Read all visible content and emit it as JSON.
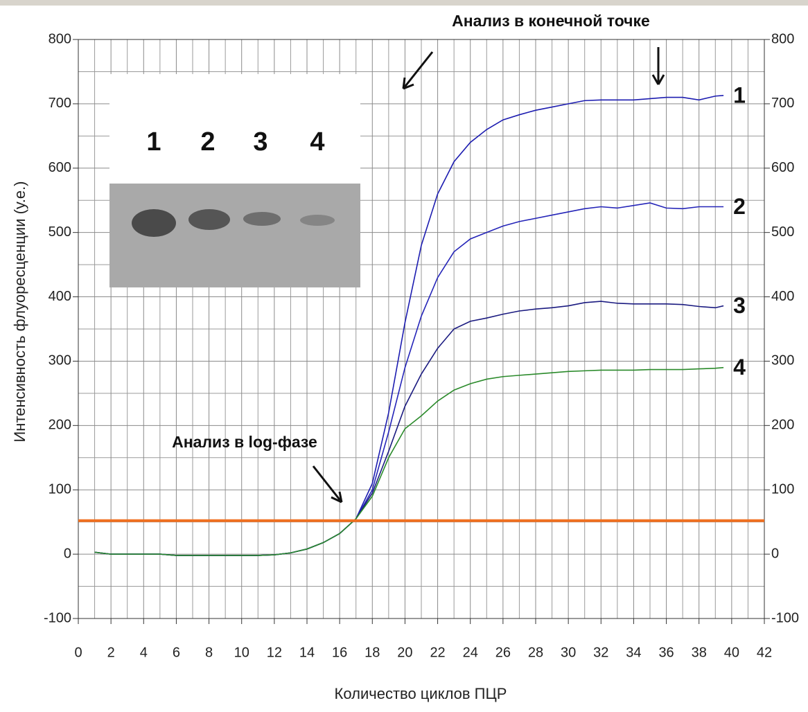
{
  "chart_data": {
    "type": "line",
    "annotations": {
      "endpoint": "Анализ в конечной точке",
      "logphase": "Анализ в log-фазе"
    },
    "xlabel": "Количество циклов ПЦР",
    "ylabel": "Интенсивность флуоресценции (у.е.)",
    "inset_lanes": [
      "1",
      "2",
      "3",
      "4"
    ],
    "x": [
      1,
      2,
      3,
      4,
      5,
      6,
      7,
      8,
      9,
      10,
      11,
      12,
      13,
      14,
      15,
      16,
      17,
      18,
      19,
      20,
      21,
      22,
      23,
      24,
      25,
      26,
      27,
      28,
      29,
      30,
      31,
      32,
      33,
      34,
      35,
      36,
      37,
      38,
      39,
      39.5
    ],
    "series": [
      {
        "name": "1",
        "color": "#1c1cb0",
        "values": [
          3,
          0,
          0,
          0,
          0,
          -2,
          -2,
          -2,
          -2,
          -2,
          -2,
          -1,
          2,
          8,
          18,
          32,
          55,
          110,
          220,
          360,
          480,
          560,
          610,
          640,
          660,
          675,
          683,
          690,
          695,
          700,
          705,
          706,
          706,
          706,
          708,
          710,
          710,
          706,
          712,
          713
        ]
      },
      {
        "name": "2",
        "color": "#2424b8",
        "values": [
          3,
          0,
          0,
          0,
          0,
          -2,
          -2,
          -2,
          -2,
          -2,
          -2,
          -1,
          2,
          8,
          18,
          32,
          55,
          100,
          190,
          290,
          370,
          430,
          470,
          490,
          500,
          510,
          517,
          522,
          527,
          532,
          537,
          540,
          538,
          542,
          546,
          538,
          537,
          540,
          540,
          540
        ]
      },
      {
        "name": "3",
        "color": "#1a1a80",
        "values": [
          3,
          0,
          0,
          0,
          0,
          -2,
          -2,
          -2,
          -2,
          -2,
          -2,
          -1,
          2,
          8,
          18,
          32,
          55,
          95,
          160,
          230,
          280,
          320,
          350,
          362,
          367,
          373,
          378,
          381,
          383,
          386,
          391,
          393,
          390,
          389,
          389,
          389,
          388,
          385,
          383,
          386
        ]
      },
      {
        "name": "4",
        "color": "#2a8a2a",
        "values": [
          3,
          0,
          0,
          0,
          0,
          -2,
          -2,
          -2,
          -2,
          -2,
          -2,
          -1,
          2,
          8,
          18,
          32,
          55,
          90,
          150,
          195,
          215,
          238,
          255,
          265,
          272,
          276,
          278,
          280,
          282,
          284,
          285,
          286,
          286,
          286,
          287,
          287,
          287,
          288,
          289,
          290
        ]
      }
    ],
    "threshold": 52,
    "threshold_color": "#f07020",
    "xlim": [
      0,
      42
    ],
    "xticks": [
      0,
      2,
      4,
      6,
      8,
      10,
      12,
      14,
      16,
      18,
      20,
      22,
      24,
      26,
      28,
      30,
      32,
      34,
      36,
      38,
      40,
      42
    ],
    "ylim": [
      -100,
      800
    ],
    "yticks": [
      -100,
      0,
      100,
      200,
      300,
      400,
      500,
      600,
      700,
      800
    ],
    "grid": true,
    "minor_grid": true
  }
}
